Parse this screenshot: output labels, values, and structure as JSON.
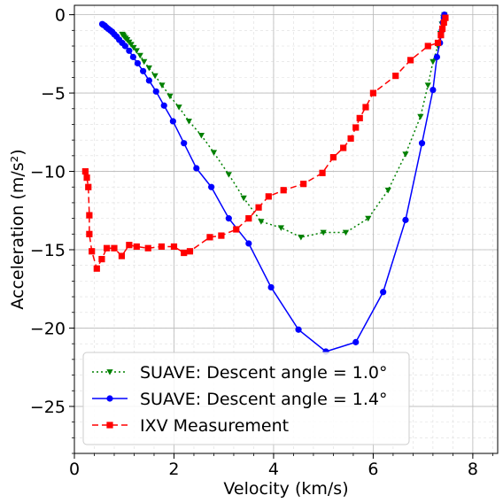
{
  "chart_data": {
    "type": "line",
    "xlabel": "Velocity (km/s)",
    "ylabel": "Acceleration (m/s²)",
    "xlim": [
      0,
      8.5
    ],
    "ylim": [
      -28,
      0.6
    ],
    "xticks": [
      0,
      2,
      4,
      6,
      8
    ],
    "yticks": [
      0,
      -5,
      -10,
      -15,
      -20,
      -25
    ],
    "xtick_labels": [
      "0",
      "2",
      "4",
      "6",
      "8"
    ],
    "ytick_labels": [
      "0",
      "−5",
      "−10",
      "−15",
      "−20",
      "−25"
    ],
    "grid": true,
    "minor_grid": true,
    "legend_position": "lower-left",
    "series": [
      {
        "name": "SUAVE: Descent angle = 1.0°",
        "color": "#008000",
        "line_style": "dotted",
        "marker": "triangle-down",
        "x": [
          7.43,
          7.41,
          7.38,
          7.35,
          7.3,
          7.2,
          7.1,
          6.95,
          6.65,
          6.3,
          5.9,
          5.45,
          5.0,
          4.55,
          4.15,
          3.75,
          3.4,
          3.1,
          2.8,
          2.55,
          2.3,
          2.1,
          1.92,
          1.76,
          1.62,
          1.5,
          1.4,
          1.32,
          1.25,
          1.19,
          1.14,
          1.1,
          1.06,
          1.03,
          1.0,
          0.98,
          0.96
        ],
        "y": [
          0.0,
          -0.2,
          -0.6,
          -1.2,
          -2.0,
          -3.0,
          -4.5,
          -6.5,
          -8.9,
          -11.2,
          -13.0,
          -13.9,
          -13.9,
          -14.2,
          -13.6,
          -13.2,
          -11.7,
          -10.2,
          -8.8,
          -7.7,
          -6.8,
          -5.9,
          -5.2,
          -4.5,
          -3.9,
          -3.4,
          -3.0,
          -2.6,
          -2.3,
          -2.1,
          -1.9,
          -1.75,
          -1.6,
          -1.5,
          -1.4,
          -1.3,
          -1.25
        ]
      },
      {
        "name": "SUAVE: Descent angle = 1.4°",
        "color": "#0000ff",
        "line_style": "solid",
        "marker": "circle",
        "x": [
          7.43,
          7.42,
          7.4,
          7.38,
          7.34,
          7.28,
          7.2,
          6.98,
          6.65,
          6.2,
          5.65,
          5.05,
          4.5,
          3.95,
          3.5,
          3.1,
          2.75,
          2.45,
          2.2,
          1.98,
          1.8,
          1.64,
          1.5,
          1.38,
          1.27,
          1.18,
          1.1,
          1.02,
          0.96,
          0.9,
          0.85,
          0.8,
          0.76,
          0.72,
          0.68,
          0.64,
          0.61,
          0.58,
          0.56
        ],
        "y": [
          0.0,
          -0.2,
          -0.5,
          -1.0,
          -1.8,
          -2.7,
          -4.8,
          -8.2,
          -13.1,
          -17.7,
          -20.9,
          -21.5,
          -20.1,
          -17.4,
          -14.6,
          -13.0,
          -11.0,
          -9.8,
          -8.2,
          -6.8,
          -5.8,
          -4.9,
          -4.2,
          -3.6,
          -3.1,
          -2.7,
          -2.3,
          -2.0,
          -1.8,
          -1.6,
          -1.4,
          -1.25,
          -1.1,
          -1.0,
          -0.9,
          -0.8,
          -0.7,
          -0.65,
          -0.6
        ]
      },
      {
        "name": "IXV Measurement",
        "color": "#ff0000",
        "line_style": "dashed",
        "marker": "square",
        "x": [
          7.45,
          7.42,
          7.39,
          7.36,
          7.3,
          7.1,
          6.75,
          6.45,
          6.0,
          5.85,
          5.73,
          5.65,
          5.55,
          5.4,
          5.2,
          4.98,
          4.6,
          4.2,
          3.9,
          3.7,
          3.5,
          3.25,
          2.95,
          2.72,
          2.32,
          2.2,
          2.0,
          1.75,
          1.48,
          1.25,
          1.1,
          0.95,
          0.8,
          0.65,
          0.55,
          0.45,
          0.35,
          0.3,
          0.3,
          0.28,
          0.25,
          0.22
        ],
        "y": [
          -0.2,
          -0.5,
          -0.9,
          -1.3,
          -1.8,
          -2.0,
          -2.9,
          -3.9,
          -5.0,
          -5.9,
          -6.6,
          -7.2,
          -7.9,
          -8.5,
          -9.1,
          -10.1,
          -10.8,
          -11.2,
          -11.6,
          -12.3,
          -13.0,
          -13.7,
          -14.1,
          -14.2,
          -15.1,
          -15.2,
          -14.8,
          -14.8,
          -14.9,
          -14.8,
          -14.7,
          -15.4,
          -14.9,
          -14.9,
          -15.6,
          -16.2,
          -15.1,
          -14.0,
          -12.8,
          -11.0,
          -10.4,
          -10.0
        ]
      }
    ]
  }
}
